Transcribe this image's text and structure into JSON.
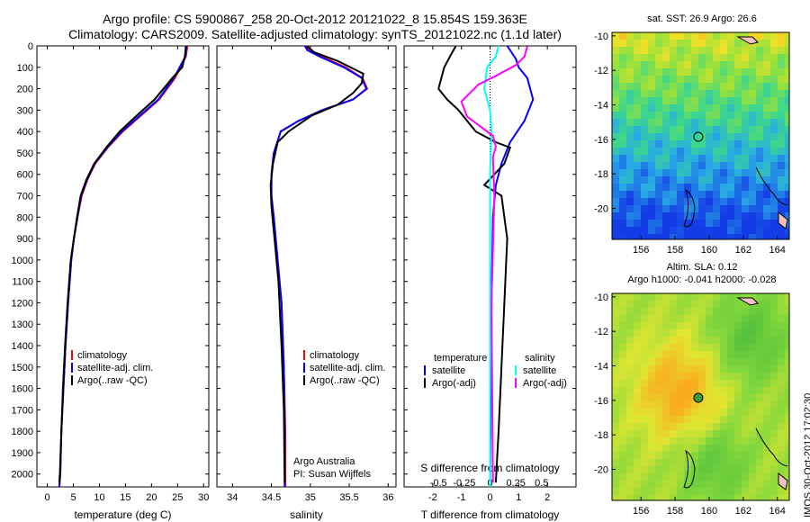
{
  "titles": {
    "line1": "Argo profile: CS 5900867_258 20-Oct-2012 20121022_8 15.854S 159.363E",
    "line2": "Climatology: CARS2009. Satellite-adjusted climatology: synTS_20121022.nc (1.1d later)"
  },
  "colors": {
    "clim": "#ff0000",
    "sat": "#0000ff",
    "argo": "#000000",
    "sat_s": "#00ffff",
    "argo_s": "#ff00ff"
  },
  "depth_ticks": [
    0,
    100,
    200,
    300,
    400,
    500,
    600,
    700,
    800,
    900,
    1000,
    1100,
    1200,
    1300,
    1400,
    1500,
    1600,
    1700,
    1800,
    1900,
    2000
  ],
  "chart_data": [
    {
      "type": "line",
      "xlabel": "temperature (deg C)",
      "xlim": [
        -2,
        31
      ],
      "xticks": [
        0,
        5,
        10,
        15,
        20,
        25,
        30
      ],
      "ylim": [
        0,
        2060
      ],
      "legend": {
        "clim": "climatology",
        "sat": "satellite-adj. clim.",
        "argo": "Argo(..raw -QC)"
      },
      "series": [
        {
          "name": "climatology",
          "color": "clim",
          "x": [
            26.9,
            26.6,
            24.5,
            21.5,
            18,
            14.5,
            11.6,
            9.2,
            7.7,
            6.6,
            5.8,
            5.1,
            4.6,
            4.0,
            3.5,
            3.1,
            2.7,
            2.5,
            2.3
          ],
          "y": [
            0,
            50,
            150,
            250,
            325,
            400,
            475,
            550,
            625,
            700,
            800,
            900,
            1000,
            1200,
            1400,
            1600,
            1800,
            2000,
            2060
          ]
        },
        {
          "name": "satellite-adj. clim.",
          "color": "sat",
          "x": [
            26.7,
            26.5,
            24.3,
            21.3,
            17.8,
            14.3,
            11.5,
            9.1,
            7.6,
            6.5,
            5.8,
            5.1,
            4.6,
            4.0,
            3.5,
            3.1,
            2.7,
            2.5,
            2.3
          ],
          "y": [
            0,
            50,
            150,
            250,
            325,
            400,
            475,
            550,
            625,
            700,
            800,
            900,
            1000,
            1200,
            1400,
            1600,
            1800,
            2000,
            2060
          ]
        },
        {
          "name": "Argo",
          "color": "argo",
          "x": [
            26.6,
            26.4,
            25.9,
            24.0,
            20.6,
            17.2,
            13.9,
            11.3,
            9.0,
            7.5,
            6.4,
            5.7,
            5.1,
            4.5,
            3.9,
            3.4,
            3.0,
            2.7,
            2.4,
            2.3
          ],
          "y": [
            2,
            50,
            100,
            150,
            250,
            325,
            400,
            475,
            550,
            625,
            700,
            800,
            900,
            1000,
            1200,
            1400,
            1600,
            1800,
            2000,
            2040
          ]
        }
      ]
    },
    {
      "type": "line",
      "xlabel": "salinity",
      "xlim": [
        33.8,
        36.1
      ],
      "xticks": [
        34,
        34.5,
        35,
        35.5,
        36
      ],
      "ylim": [
        0,
        2060
      ],
      "legend": {
        "clim": "climatology",
        "sat": "satellite-adj. clim.",
        "argo": "Argo(..raw -QC)"
      },
      "annotation": [
        "Argo Australia",
        "PI: Susan Wijffels"
      ],
      "series": [
        {
          "name": "climatology",
          "color": "clim",
          "x": [
            34.95,
            34.98,
            35.15,
            35.45,
            35.67,
            35.73,
            35.55,
            35.15,
            34.85,
            34.62,
            34.53,
            34.5,
            34.5,
            34.53,
            34.58,
            34.63,
            34.66,
            34.68,
            34.68
          ],
          "y": [
            0,
            20,
            50,
            100,
            150,
            200,
            250,
            300,
            350,
            400,
            500,
            600,
            700,
            800,
            1000,
            1200,
            1500,
            1800,
            2060
          ]
        },
        {
          "name": "satellite-adj. clim.",
          "color": "sat",
          "x": [
            34.93,
            34.96,
            35.12,
            35.43,
            35.66,
            35.72,
            35.55,
            35.15,
            34.85,
            34.62,
            34.53,
            34.5,
            34.5,
            34.53,
            34.58,
            34.63,
            34.66,
            34.67,
            34.67
          ],
          "y": [
            0,
            20,
            50,
            100,
            150,
            200,
            250,
            300,
            350,
            400,
            500,
            600,
            700,
            800,
            1000,
            1200,
            1500,
            1800,
            2060
          ]
        },
        {
          "name": "Argo",
          "color": "argo",
          "x": [
            34.96,
            35.05,
            35.35,
            35.68,
            35.66,
            35.55,
            35.35,
            35.02,
            34.72,
            34.58,
            34.52,
            34.49,
            34.5,
            34.54,
            34.59,
            34.63,
            34.66,
            34.67
          ],
          "y": [
            2,
            30,
            70,
            130,
            175,
            220,
            275,
            325,
            400,
            450,
            550,
            650,
            750,
            900,
            1100,
            1400,
            1700,
            2040
          ]
        }
      ]
    },
    {
      "type": "line",
      "xlabel": "T difference from climatology",
      "xlabel_top": "S difference from climatology",
      "xlim": [
        -3,
        3
      ],
      "xticks": [
        -2,
        -1,
        0,
        1,
        2
      ],
      "xticks_s": [
        -0.5,
        -0.25,
        0,
        0.25,
        0.5
      ],
      "s_factor": 3.6,
      "ylim": [
        0,
        2060
      ],
      "legend": {
        "temperature": "temperature",
        "salinity": "salinity",
        "sat_t": "satellite",
        "argo_t": "Argo(-adj)",
        "sat_s": "satellite",
        "argo_s": "Argo(-adj)"
      },
      "series": [
        {
          "name": "T satellite",
          "color": "sat",
          "x": [
            0.6,
            0.9,
            1.0,
            1.3,
            1.5,
            1.2,
            0.7,
            0.4,
            0.2,
            0.1,
            0.05,
            0
          ],
          "y": [
            0,
            60,
            100,
            150,
            250,
            350,
            450,
            550,
            650,
            800,
            1200,
            2060
          ]
        },
        {
          "name": "T Argo",
          "color": "argo",
          "x": [
            -1.2,
            -1.4,
            -1.6,
            -1.7,
            -1.8,
            -1.5,
            -1.1,
            -0.8,
            -0.5,
            0.2,
            0.7,
            0.5,
            -0.2,
            0.4,
            0.6,
            0.5,
            0.4,
            0.3,
            0.2
          ],
          "y": [
            2,
            50,
            100,
            150,
            200,
            250,
            300,
            350,
            400,
            450,
            475,
            550,
            650,
            700,
            900,
            1200,
            1500,
            1800,
            2040
          ]
        },
        {
          "name": "S satellite",
          "color": "sat_s",
          "x": [
            0.3,
            0.2,
            -0.1,
            -0.2,
            0,
            0.05,
            0,
            0
          ],
          "y": [
            0,
            50,
            100,
            200,
            300,
            400,
            600,
            2060
          ]
        },
        {
          "name": "S Argo",
          "color": "argo_s",
          "x": [
            1.3,
            1.2,
            0.9,
            0.2,
            -0.4,
            -1.0,
            -0.8,
            0.1,
            0.2,
            0.1,
            0.15,
            0.05,
            0.1
          ],
          "y": [
            2,
            50,
            90,
            140,
            180,
            260,
            330,
            420,
            470,
            520,
            700,
            1200,
            2040
          ]
        }
      ]
    }
  ],
  "maps": [
    {
      "title": "sat. SST: 26.9  Argo: 26.6",
      "title2": "",
      "xticks": [
        156,
        158,
        160,
        162,
        164
      ],
      "yticks": [
        -10,
        -12,
        -14,
        -16,
        -18,
        -20
      ],
      "xlim": [
        154.3,
        164.7
      ],
      "ylim": [
        -21.8,
        -9.8
      ],
      "marker": {
        "lon": 159.363,
        "lat": -15.854
      }
    },
    {
      "title": "Altim. SLA: 0.12",
      "title2": "Argo h1000: -0.041  h2000: -0.028",
      "xticks": [
        156,
        158,
        160,
        162,
        164
      ],
      "yticks": [
        -10,
        -12,
        -14,
        -16,
        -18,
        -20
      ],
      "xlim": [
        154.3,
        164.7
      ],
      "ylim": [
        -21.8,
        -9.8
      ],
      "marker": {
        "lon": 159.363,
        "lat": -15.854
      }
    }
  ],
  "stamp": "IMOS 30-Oct-2012 17:02:30"
}
